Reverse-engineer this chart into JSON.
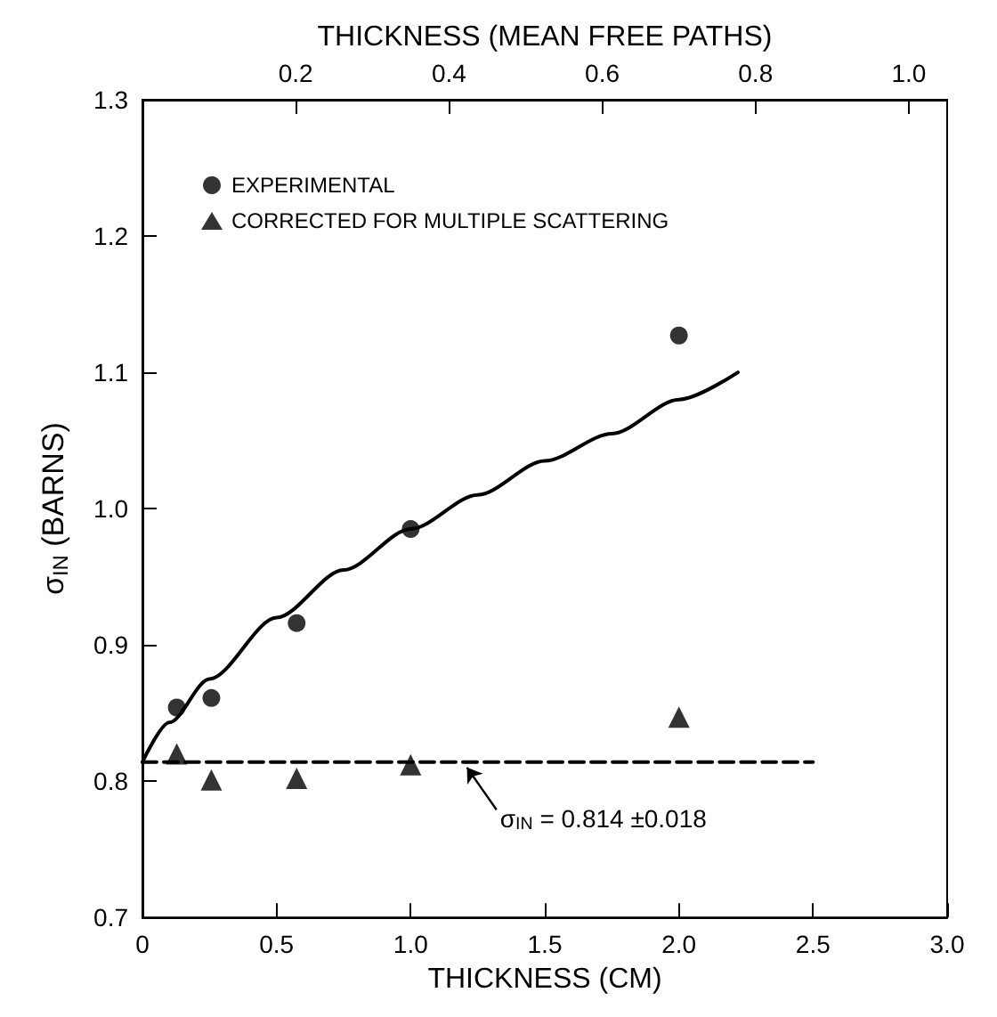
{
  "chart_data": {
    "type": "scatter",
    "xlabel": "THICKNESS (CM)",
    "ylabel": "σ$_{IN}$ (BARNS)",
    "x2label": "THICKNESS (MEAN FREE PATHS)",
    "xlim": [
      0,
      3
    ],
    "xticks": [
      0,
      0.5,
      {
        "value": 1,
        "label": "1.0"
      },
      1.5,
      {
        "value": 2,
        "label": "2.0"
      },
      2.5,
      {
        "value": 3,
        "label": "3.0"
      }
    ],
    "x2lim": [
      0,
      1.05
    ],
    "x2ticks": [
      0.2,
      0.4,
      0.6,
      0.8,
      {
        "value": 1,
        "label": "1.0"
      }
    ],
    "ylim": [
      0.7,
      1.3
    ],
    "yticks": [
      0.7,
      0.8,
      0.9,
      {
        "value": 1,
        "label": "1.0"
      },
      1.1,
      1.2,
      1.3
    ],
    "grid": false,
    "legend": "top left",
    "series": [
      {
        "name": "EXPERIMENTAL",
        "marker": "circle",
        "color": "#000000",
        "x": [
          0.128,
          0.257,
          0.575,
          1.0,
          2.0
        ],
        "values": [
          0.854,
          0.861,
          0.916,
          0.985,
          1.127
        ]
      },
      {
        "name": "CORRECTED FOR MULTIPLE SCATTERING",
        "marker": "triangle",
        "color": "#000000",
        "x": [
          0.128,
          0.257,
          0.575,
          1.0,
          2.0
        ],
        "values": [
          0.82,
          0.801,
          0.802,
          0.812,
          0.847
        ]
      },
      {
        "type": "line",
        "color": "#000000",
        "line_style": "solid",
        "marker": "none",
        "x": [
          0,
          0.1,
          0.25,
          0.5,
          0.75,
          1.0,
          1.25,
          1.5,
          1.75,
          2.0,
          2.22
        ],
        "values": [
          0.814,
          0.843,
          0.875,
          0.92,
          0.955,
          0.985,
          1.01,
          1.035,
          1.055,
          1.08,
          1.1
        ]
      },
      {
        "type": "line",
        "color": "#000000",
        "line_style": "dashed",
        "marker": "none",
        "x": [
          0,
          2.5
        ],
        "values": [
          0.814,
          0.814
        ]
      }
    ],
    "annotations": [
      {
        "text": "σ$_{IN}$ = 0.814 ±0.018",
        "x": 1.2,
        "y": 0.814
      }
    ]
  }
}
